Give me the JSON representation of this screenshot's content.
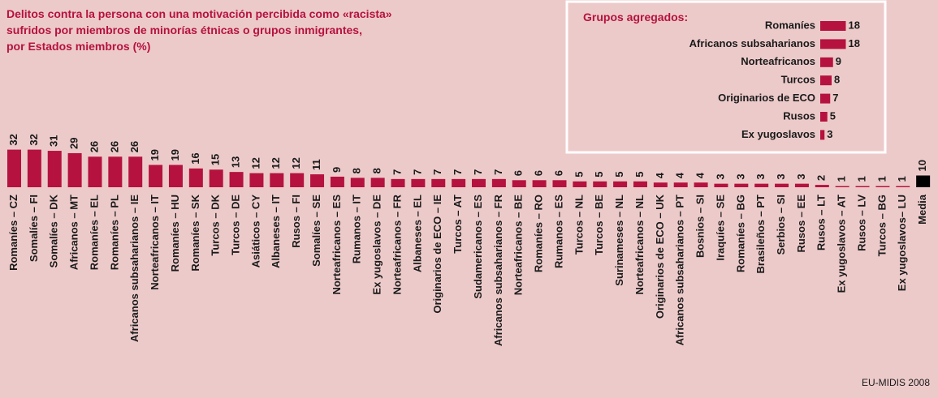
{
  "chart_data": [
    {
      "type": "bar",
      "title": [
        "Delitos contra la persona con una motivación percibida como «racista»",
        "sufridos por miembros de minorías étnicas o grupos inmigrantes,",
        "por Estados miembros (%)"
      ],
      "categories": [
        "Romaníes – CZ",
        "Somalíes – FI",
        "Somalíes – DK",
        "Africanos – MT",
        "Romaníes – EL",
        "Romaníes – PL",
        "Africanos subsaharianos – IE",
        "Norteafricanos – IT",
        "Romaníes – HU",
        "Romaníes – SK",
        "Turcos – DK",
        "Turcos – DE",
        "Asiáticos – CY",
        "Albaneses – IT",
        "Rusos – FI",
        "Somalíes – SE",
        "Norteafricanos – ES",
        "Rumanos – IT",
        "Ex yugoslavos – DE",
        "Norteafricanos – FR",
        "Albaneses – EL",
        "Originarios de ECO – IE",
        "Turcos – AT",
        "Sudamericanos – ES",
        "Africanos subsaharianos – FR",
        "Norteafricanos – BE",
        "Romaníes – RO",
        "Rumanos – ES",
        "Turcos – NL",
        "Turcos – BE",
        "Surinameses – NL",
        "Norteafricanos – NL",
        "Originarios de ECO – UK",
        "Africanos subsaharianos – PT",
        "Bosnios – SI",
        "Iraquíes – SE",
        "Romaníes – BG",
        "Brasileños – PT",
        "Serbios – SI",
        "Rusos – EE",
        "Rusos – LT",
        "Ex yugoslavos – AT",
        "Rusos – LV",
        "Turcos – BG",
        "Ex yugoslavos– LU",
        "Media"
      ],
      "values": [
        32,
        32,
        31,
        29,
        26,
        26,
        26,
        19,
        19,
        16,
        15,
        13,
        12,
        12,
        12,
        11,
        9,
        8,
        8,
        7,
        7,
        7,
        7,
        7,
        7,
        6,
        6,
        6,
        5,
        5,
        5,
        5,
        4,
        4,
        4,
        3,
        3,
        3,
        3,
        3,
        2,
        1,
        1,
        1,
        1,
        10
      ],
      "colors": [
        "#b5123f",
        "#b5123f",
        "#b5123f",
        "#b5123f",
        "#b5123f",
        "#b5123f",
        "#b5123f",
        "#b5123f",
        "#b5123f",
        "#b5123f",
        "#b5123f",
        "#b5123f",
        "#b5123f",
        "#b5123f",
        "#b5123f",
        "#b5123f",
        "#b5123f",
        "#b5123f",
        "#b5123f",
        "#b5123f",
        "#b5123f",
        "#b5123f",
        "#b5123f",
        "#b5123f",
        "#b5123f",
        "#b5123f",
        "#b5123f",
        "#b5123f",
        "#b5123f",
        "#b5123f",
        "#b5123f",
        "#b5123f",
        "#b5123f",
        "#b5123f",
        "#b5123f",
        "#b5123f",
        "#b5123f",
        "#b5123f",
        "#b5123f",
        "#b5123f",
        "#b5123f",
        "#b5123f",
        "#b5123f",
        "#b5123f",
        "#b5123f",
        "#000000"
      ],
      "source": "EU-MIDIS 2008"
    },
    {
      "type": "barh",
      "title": "Grupos agregados:",
      "categories": [
        "Romaníes",
        "Africanos subsaharianos",
        "Norteafricanos",
        "Turcos",
        "Originarios de ECO",
        "Rusos",
        "Ex yugoslavos"
      ],
      "values": [
        18,
        18,
        9,
        8,
        7,
        5,
        3
      ],
      "color": "#b5123f"
    }
  ]
}
